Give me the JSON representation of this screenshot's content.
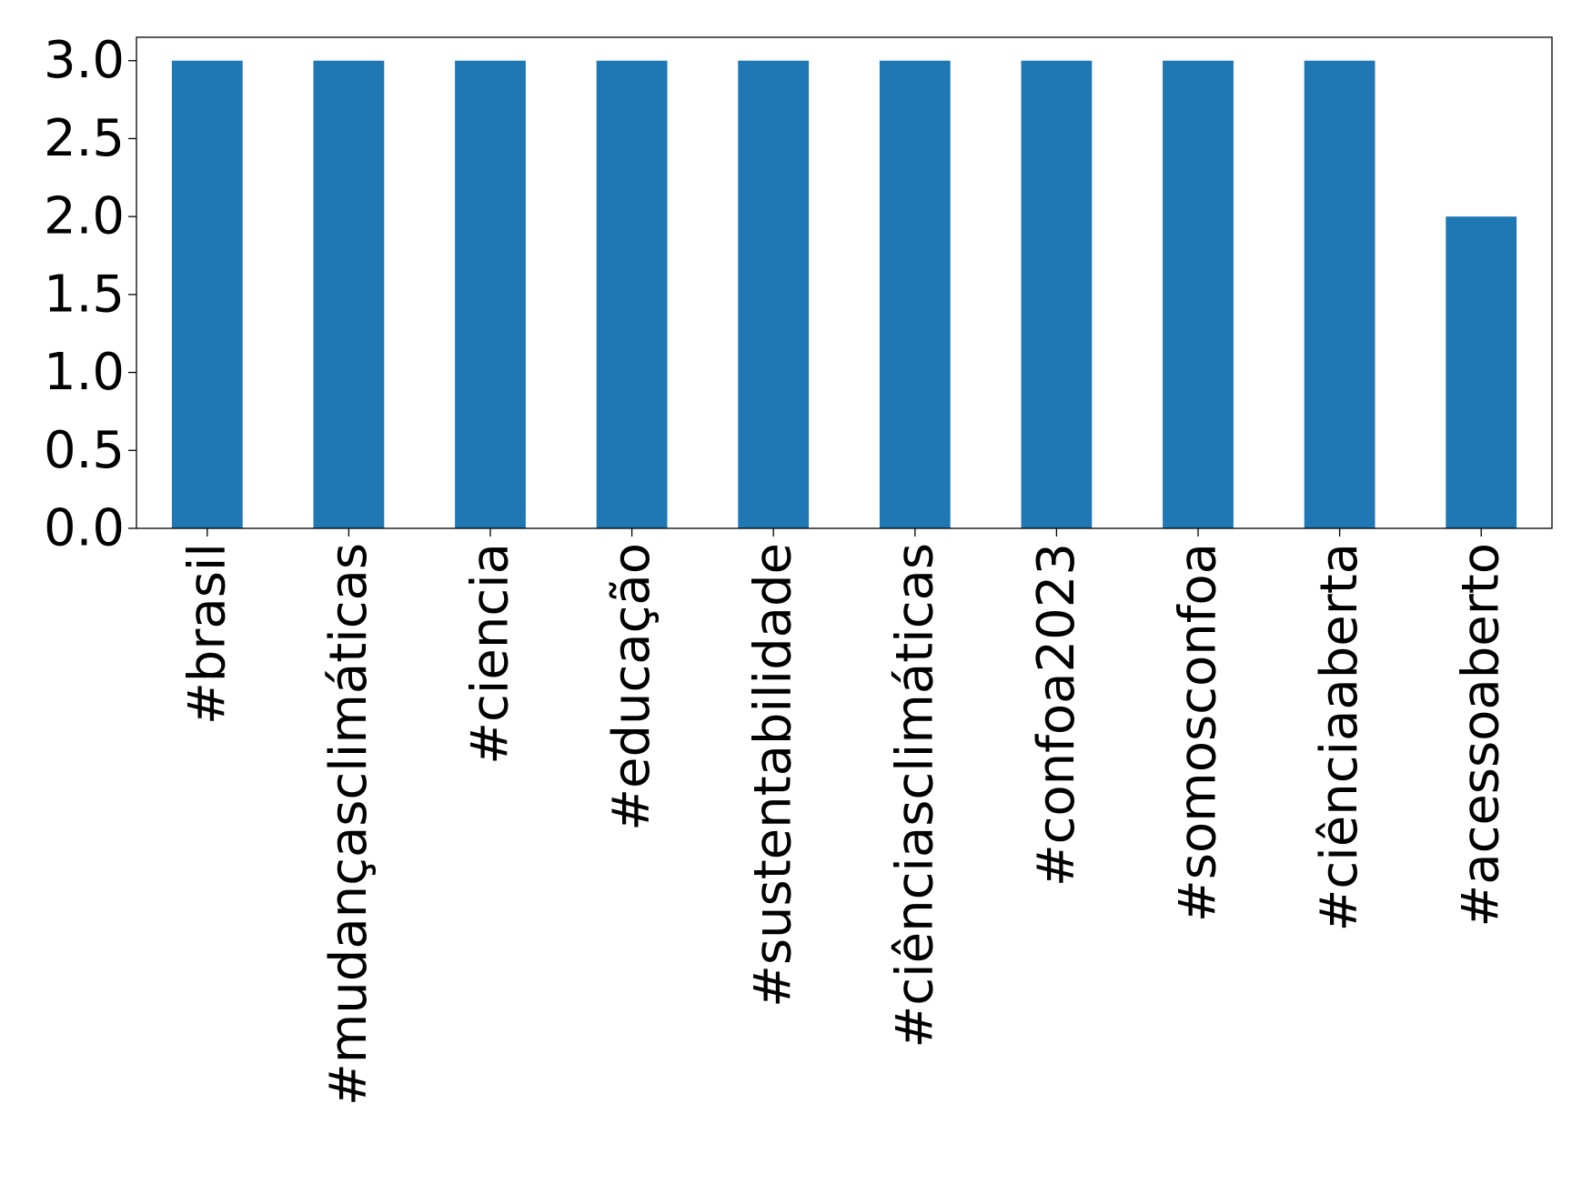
{
  "chart_data": {
    "type": "bar",
    "title": "",
    "xlabel": "",
    "ylabel": "",
    "categories": [
      "#brasil",
      "#mudançasclimáticas",
      "#ciencia",
      "#educação",
      "#sustentabilidade",
      "#ciênciasclimáticas",
      "#confoa2023",
      "#somosconfoa",
      "#ciênciaaberta",
      "#acessoaberto"
    ],
    "values": [
      3,
      3,
      3,
      3,
      3,
      3,
      3,
      3,
      3,
      2
    ],
    "yticks": [
      "0.0",
      "0.5",
      "1.0",
      "1.5",
      "2.0",
      "2.5",
      "3.0"
    ],
    "ylim": [
      0,
      3.15
    ],
    "grid": false,
    "legend": "none",
    "bar_color": "#1f77b4"
  }
}
